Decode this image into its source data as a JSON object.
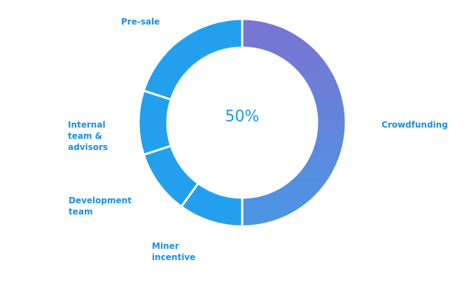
{
  "chart_data": {
    "type": "pie",
    "variant": "donut",
    "center_label": "50%",
    "slices": [
      {
        "label": "Crowdfunding",
        "value": 50,
        "color": "#7b74d2"
      },
      {
        "label": "Miner\nincentive",
        "value": 10,
        "color": "#22a0ee"
      },
      {
        "label": "Development\nteam",
        "value": 10,
        "color": "#22a0ee"
      },
      {
        "label": "Internal\nteam &\nadvisors",
        "value": 10,
        "color": "#22a0ee"
      },
      {
        "label": "Pre-sale",
        "value": 20,
        "color": "#22a0ee"
      }
    ],
    "gradient": {
      "from": "#7b74d2",
      "to": "#4a96e4"
    },
    "label_color": "#1a8fe0",
    "legend": "none"
  }
}
